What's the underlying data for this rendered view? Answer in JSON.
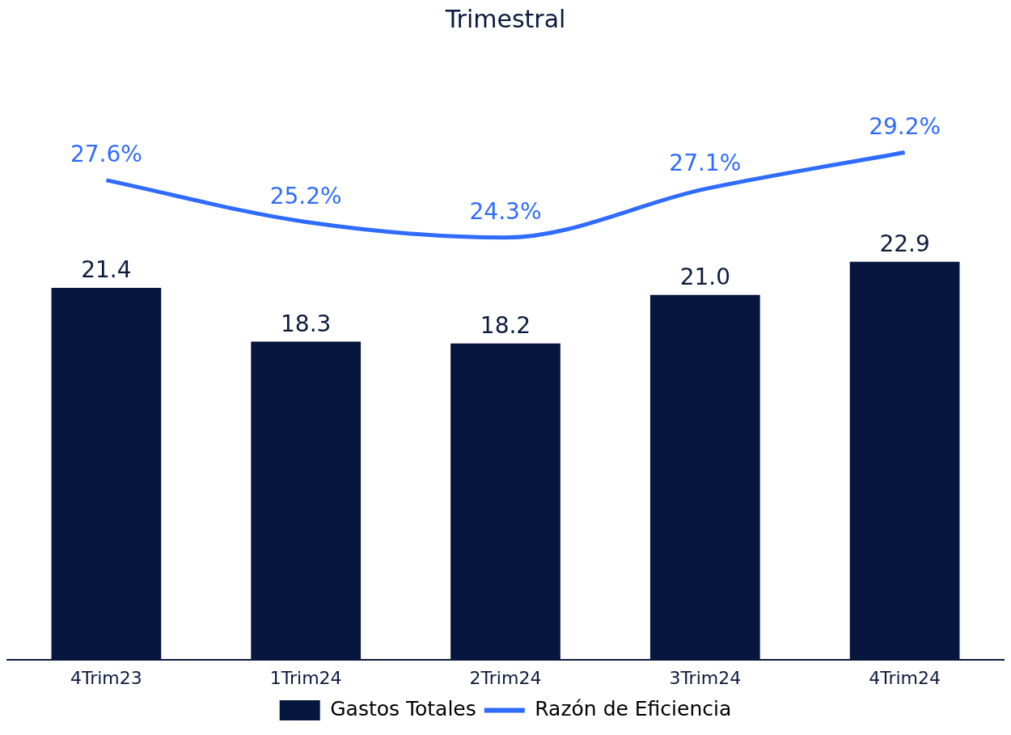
{
  "chart_data": {
    "type": "bar",
    "title": "Trimestral",
    "categories": [
      "4Trim23",
      "1Trim24",
      "2Trim24",
      "3Trim24",
      "4Trim24"
    ],
    "series": [
      {
        "name": "Gastos Totales",
        "color": "#06163f",
        "values": [
          21.4,
          18.3,
          18.2,
          21.0,
          22.9
        ],
        "value_labels": [
          "21.4",
          "18.3",
          "18.2",
          "21.0",
          "22.9"
        ]
      },
      {
        "name": "Razón de Eficiencia",
        "type": "line",
        "color": "#2f6bff",
        "values": [
          27.6,
          25.2,
          24.3,
          27.1,
          29.2
        ],
        "value_labels": [
          "27.6%",
          "25.2%",
          "24.3%",
          "27.1%",
          "29.2%"
        ]
      }
    ],
    "tick_labels": "x",
    "grid": false,
    "legend": "bottom",
    "marker": "none",
    "line_style": "solid"
  }
}
